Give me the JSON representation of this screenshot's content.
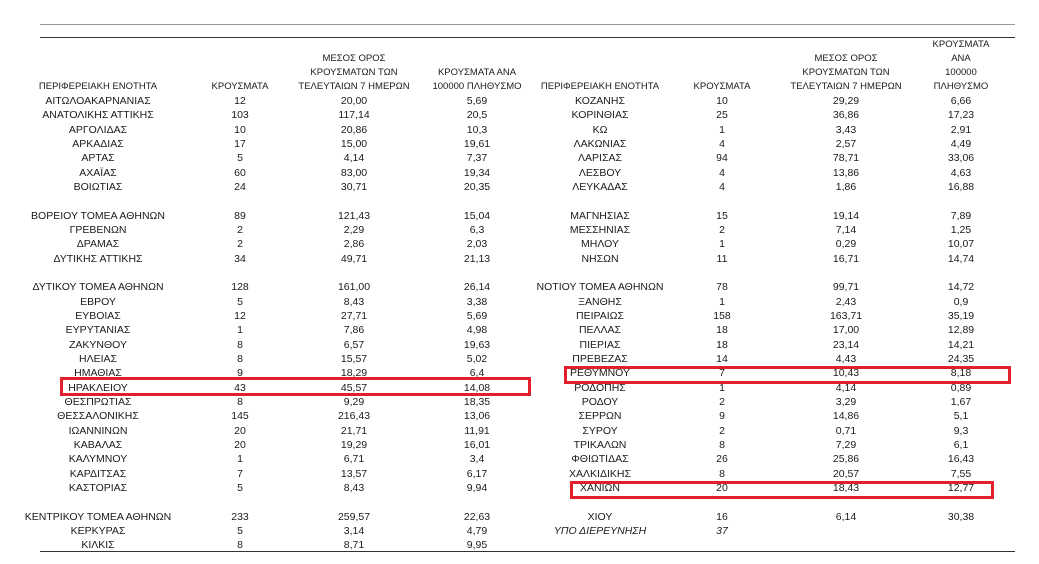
{
  "left_table": {
    "headers": [
      "ΠΕΡΙΦΕΡΕΙΑΚΗ ΕΝΟΤΗΤΑ",
      "ΚΡΟΥΣΜΑΤΑ",
      "ΜΕΣΟΣ ΟΡΟΣ\nΚΡΟΥΣΜΑΤΩΝ ΤΩΝ\nΤΕΛΕΥΤΑΙΩΝ 7 ΗΜΕΡΩΝ",
      "ΚΡΟΥΣΜΑΤΑ ΑΝΑ\n100000 ΠΛΗΘΥΣΜΟ"
    ],
    "groups": [
      [
        [
          "ΑΙΤΩΛΟΑΚΑΡΝΑΝΙΑΣ",
          "12",
          "20,00",
          "5,69"
        ],
        [
          "ΑΝΑΤΟΛΙΚΗΣ ΑΤΤΙΚΗΣ",
          "103",
          "117,14",
          "20,5"
        ],
        [
          "ΑΡΓΟΛΙΔΑΣ",
          "10",
          "20,86",
          "10,3"
        ],
        [
          "ΑΡΚΑΔΙΑΣ",
          "17",
          "15,00",
          "19,61"
        ],
        [
          "ΑΡΤΑΣ",
          "5",
          "4,14",
          "7,37"
        ],
        [
          "ΑΧΑΪΑΣ",
          "60",
          "83,00",
          "19,34"
        ],
        [
          "ΒΟΙΩΤΙΑΣ",
          "24",
          "30,71",
          "20,35"
        ]
      ],
      [
        [
          "ΒΟΡΕΙΟΥ ΤΟΜΕΑ ΑΘΗΝΩΝ",
          "89",
          "121,43",
          "15,04"
        ],
        [
          "ΓΡΕΒΕΝΩΝ",
          "2",
          "2,29",
          "6,3"
        ],
        [
          "ΔΡΑΜΑΣ",
          "2",
          "2,86",
          "2,03"
        ],
        [
          "ΔΥΤΙΚΗΣ ΑΤΤΙΚΗΣ",
          "34",
          "49,71",
          "21,13"
        ]
      ],
      [
        [
          "ΔΥΤΙΚΟΥ ΤΟΜΕΑ ΑΘΗΝΩΝ",
          "128",
          "161,00",
          "26,14"
        ],
        [
          "ΕΒΡΟΥ",
          "5",
          "8,43",
          "3,38"
        ],
        [
          "ΕΥΒΟΙΑΣ",
          "12",
          "27,71",
          "5,69"
        ],
        [
          "ΕΥΡΥΤΑΝΙΑΣ",
          "1",
          "7,86",
          "4,98"
        ],
        [
          "ΖΑΚΥΝΘΟΥ",
          "8",
          "6,57",
          "19,63"
        ],
        [
          "ΗΛΕΙΑΣ",
          "8",
          "15,57",
          "5,02"
        ],
        [
          "ΗΜΑΘΙΑΣ",
          "9",
          "18,29",
          "6,4"
        ],
        [
          "ΗΡΑΚΛΕΙΟΥ",
          "43",
          "45,57",
          "14,08"
        ],
        [
          "ΘΕΣΠΡΩΤΙΑΣ",
          "8",
          "9,29",
          "18,35"
        ],
        [
          "ΘΕΣΣΑΛΟΝΙΚΗΣ",
          "145",
          "216,43",
          "13,06"
        ],
        [
          "ΙΩΑΝΝΙΝΩΝ",
          "20",
          "21,71",
          "11,91"
        ],
        [
          "ΚΑΒΑΛΑΣ",
          "20",
          "19,29",
          "16,01"
        ],
        [
          "ΚΑΛΥΜΝΟΥ",
          "1",
          "6,71",
          "3,4"
        ],
        [
          "ΚΑΡΔΙΤΣΑΣ",
          "7",
          "13,57",
          "6,17"
        ],
        [
          "ΚΑΣΤΟΡΙΑΣ",
          "5",
          "8,43",
          "9,94"
        ]
      ],
      [
        [
          "ΚΕΝΤΡΙΚΟΥ ΤΟΜΕΑ ΑΘΗΝΩΝ",
          "233",
          "259,57",
          "22,63"
        ],
        [
          "ΚΕΡΚΥΡΑΣ",
          "5",
          "3,14",
          "4,79"
        ],
        [
          "ΚΙΛΚΙΣ",
          "8",
          "8,71",
          "9,95"
        ]
      ]
    ]
  },
  "right_table": {
    "headers": [
      "ΠΕΡΙΦΕΡΕΙΑΚΗ ΕΝΟΤΗΤΑ",
      "ΚΡΟΥΣΜΑΤΑ",
      "ΜΕΣΟΣ ΟΡΟΣ\nΚΡΟΥΣΜΑΤΩΝ ΤΩΝ\nΤΕΛΕΥΤΑΙΩΝ 7 ΗΜΕΡΩΝ",
      "ΚΡΟΥΣΜΑΤΑ ΑΝΑ\n100000 ΠΛΗΘΥΣΜΟ"
    ],
    "groups": [
      [
        [
          "ΚΟΖΑΝΗΣ",
          "10",
          "29,29",
          "6,66"
        ],
        [
          "ΚΟΡΙΝΘΙΑΣ",
          "25",
          "36,86",
          "17,23"
        ],
        [
          "ΚΩ",
          "1",
          "3,43",
          "2,91"
        ],
        [
          "ΛΑΚΩΝΙΑΣ",
          "4",
          "2,57",
          "4,49"
        ],
        [
          "ΛΑΡΙΣΑΣ",
          "94",
          "78,71",
          "33,06"
        ],
        [
          "ΛΕΣΒΟΥ",
          "4",
          "13,86",
          "4,63"
        ],
        [
          "ΛΕΥΚΑΔΑΣ",
          "4",
          "1,86",
          "16,88"
        ]
      ],
      [
        [
          "ΜΑΓΝΗΣΙΑΣ",
          "15",
          "19,14",
          "7,89"
        ],
        [
          "ΜΕΣΣΗΝΙΑΣ",
          "2",
          "7,14",
          "1,25"
        ],
        [
          "ΜΗΛΟΥ",
          "1",
          "0,29",
          "10,07"
        ],
        [
          "ΝΗΣΩΝ",
          "11",
          "16,71",
          "14,74"
        ]
      ],
      [
        [
          "ΝΟΤΙΟΥ ΤΟΜΕΑ ΑΘΗΝΩΝ",
          "78",
          "99,71",
          "14,72"
        ],
        [
          "ΞΑΝΘΗΣ",
          "1",
          "2,43",
          "0,9"
        ],
        [
          "ΠΕΙΡΑΙΩΣ",
          "158",
          "163,71",
          "35,19"
        ],
        [
          "ΠΕΛΛΑΣ",
          "18",
          "17,00",
          "12,89"
        ],
        [
          "ΠΙΕΡΙΑΣ",
          "18",
          "23,14",
          "14,21"
        ],
        [
          "ΠΡΕΒΕΖΑΣ",
          "14",
          "4,43",
          "24,35"
        ],
        [
          "ΡΕΘΥΜΝΟΥ",
          "7",
          "10,43",
          "8,18"
        ],
        [
          "ΡΟΔΟΠΗΣ",
          "1",
          "4,14",
          "0,89"
        ],
        [
          "ΡΟΔΟΥ",
          "2",
          "3,29",
          "1,67"
        ],
        [
          "ΣΕΡΡΩΝ",
          "9",
          "14,86",
          "5,1"
        ],
        [
          "ΣΥΡΟΥ",
          "2",
          "0,71",
          "9,3"
        ],
        [
          "ΤΡΙΚΑΛΩΝ",
          "8",
          "7,29",
          "6,1"
        ],
        [
          "ΦΘΙΩΤΙΔΑΣ",
          "26",
          "25,86",
          "16,43"
        ],
        [
          "ΧΑΛΚΙΔΙΚΗΣ",
          "8",
          "20,57",
          "7,55"
        ],
        [
          "ΧΑΝΙΩΝ",
          "20",
          "18,43",
          "12,77"
        ]
      ],
      [
        [
          "ΧΙΟΥ",
          "16",
          "6,14",
          "30,38"
        ],
        [
          "ΥΠΟ ΔΙΕΡΕΥΝΗΣΗ",
          "37"
        ]
      ]
    ]
  }
}
